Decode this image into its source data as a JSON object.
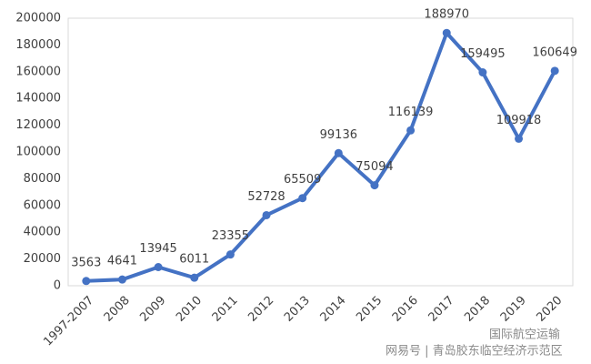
{
  "chart_data": {
    "type": "line",
    "categories": [
      "1997-2007",
      "2008",
      "2009",
      "2010",
      "2011",
      "2012",
      "2013",
      "2014",
      "2015",
      "2016",
      "2017",
      "2018",
      "2019",
      "2020"
    ],
    "values": [
      3563,
      4641,
      13945,
      6011,
      23355,
      52728,
      65509,
      99136,
      75094,
      116139,
      188970,
      159495,
      109918,
      160649
    ],
    "color": "#4472c4",
    "ylim": [
      0,
      200000
    ],
    "yticks": [
      0,
      20000,
      40000,
      60000,
      80000,
      100000,
      120000,
      140000,
      160000,
      180000,
      200000
    ],
    "grid": false
  },
  "watermark": {
    "account": "国际航空运输",
    "source": "网易号 | 青岛胶东临空经济示范区"
  }
}
